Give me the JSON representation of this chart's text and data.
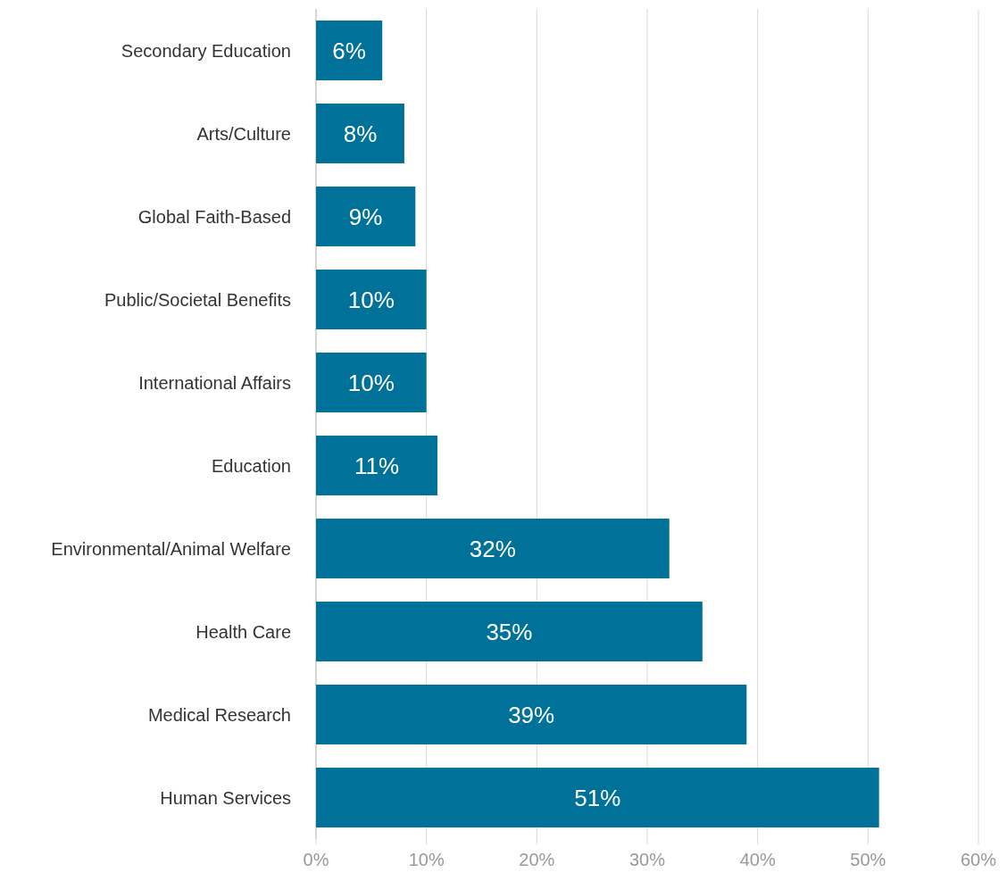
{
  "chart_data": {
    "type": "bar",
    "orientation": "horizontal",
    "categories": [
      "Secondary Education",
      "Arts/Culture",
      "Global Faith-Based",
      "Public/Societal Benefits",
      "International Affairs",
      "Education",
      "Environmental/Animal Welfare",
      "Health Care",
      "Medical Research",
      "Human Services"
    ],
    "values": [
      6,
      8,
      9,
      10,
      10,
      11,
      32,
      35,
      39,
      51
    ],
    "color": "#00729a",
    "data_labels": true,
    "value_labels": [
      "6%",
      "8%",
      "9%",
      "10%",
      "10%",
      "11%",
      "32%",
      "35%",
      "39%",
      "51%"
    ],
    "xlim": [
      0,
      60
    ],
    "xticks": [
      {
        "value": 0,
        "label": "0%"
      },
      {
        "value": 10,
        "label": "10%"
      },
      {
        "value": 20,
        "label": "20%"
      },
      {
        "value": 30,
        "label": "30%"
      },
      {
        "value": 40,
        "label": "40%"
      },
      {
        "value": 50,
        "label": "50%"
      },
      {
        "value": 60,
        "label": "60%"
      }
    ],
    "grid": "x"
  }
}
